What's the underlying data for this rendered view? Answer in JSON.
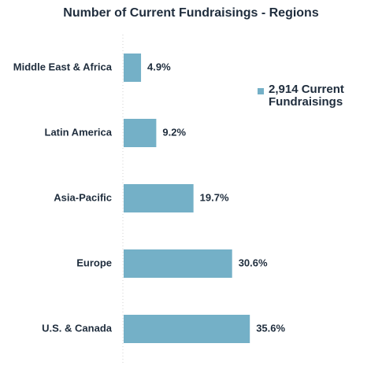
{
  "chart_data": {
    "type": "bar",
    "orientation": "horizontal",
    "title": "Number of Current Fundraisings - Regions",
    "categories": [
      "Middle East & Africa",
      "Latin America",
      "Asia-Pacific",
      "Europe",
      "U.S. & Canada"
    ],
    "values": [
      4.9,
      9.2,
      19.7,
      30.6,
      35.6
    ],
    "value_labels": [
      "4.9%",
      "9.2%",
      "19.7%",
      "30.6%",
      "35.6%"
    ],
    "unit": "%",
    "xlim": [
      0,
      50
    ],
    "xlabel": "",
    "ylabel": "",
    "grid": false,
    "legend": {
      "placement": "right",
      "entries": [
        "2,914 Current Fundraisings"
      ]
    },
    "bar_color": "#74b0c7"
  }
}
